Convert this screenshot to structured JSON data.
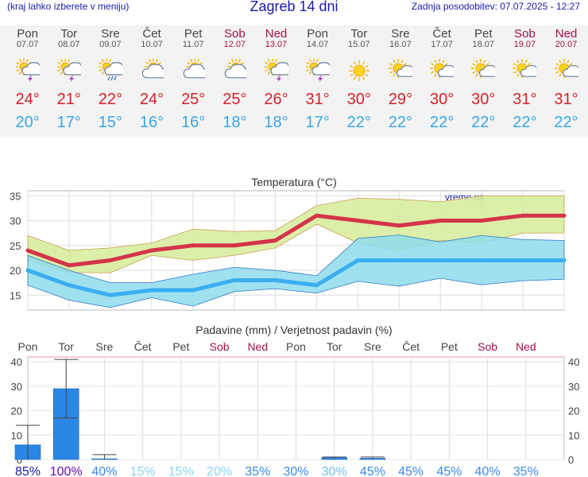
{
  "header": {
    "menu_hint": "(kraj lahko izberete v meniju)",
    "title": "Zagreb 14 dni",
    "updated": "Zadnja posodobitev: 07.07.2025 - 12:27"
  },
  "days": [
    {
      "name": "Pon",
      "date": "07.07",
      "weekend": false,
      "icon": "sun-cloud-thunder-icon",
      "tmax": "24°",
      "tmin": "20°"
    },
    {
      "name": "Tor",
      "date": "08.07",
      "weekend": false,
      "icon": "sun-cloud-thunder-icon",
      "tmax": "21°",
      "tmin": "17°"
    },
    {
      "name": "Sre",
      "date": "09.07",
      "weekend": false,
      "icon": "sun-cloud-rain-icon",
      "tmax": "22°",
      "tmin": "15°"
    },
    {
      "name": "Čet",
      "date": "10.07",
      "weekend": false,
      "icon": "sun-cloud-icon",
      "tmax": "24°",
      "tmin": "16°"
    },
    {
      "name": "Pet",
      "date": "11.07",
      "weekend": false,
      "icon": "sun-cloud-icon",
      "tmax": "25°",
      "tmin": "16°"
    },
    {
      "name": "Sob",
      "date": "12.07",
      "weekend": true,
      "icon": "sun-cloud-icon",
      "tmax": "25°",
      "tmin": "18°"
    },
    {
      "name": "Ned",
      "date": "13.07",
      "weekend": true,
      "icon": "sun-cloud-thunder-icon",
      "tmax": "26°",
      "tmin": "18°"
    },
    {
      "name": "Pon",
      "date": "14.07",
      "weekend": false,
      "icon": "sun-cloud-thunder-icon",
      "tmax": "31°",
      "tmin": "17°"
    },
    {
      "name": "Tor",
      "date": "15.07",
      "weekend": false,
      "icon": "sun-icon",
      "tmax": "30°",
      "tmin": "22°"
    },
    {
      "name": "Sre",
      "date": "16.07",
      "weekend": false,
      "icon": "sun-small-cloud-icon",
      "tmax": "29°",
      "tmin": "22°"
    },
    {
      "name": "Čet",
      "date": "17.07",
      "weekend": false,
      "icon": "sun-small-cloud-icon",
      "tmax": "30°",
      "tmin": "22°"
    },
    {
      "name": "Pet",
      "date": "18.07",
      "weekend": false,
      "icon": "sun-small-cloud-icon",
      "tmax": "30°",
      "tmin": "22°"
    },
    {
      "name": "Sob",
      "date": "19.07",
      "weekend": true,
      "icon": "sun-small-cloud-icon",
      "tmax": "31°",
      "tmin": "22°"
    },
    {
      "name": "Ned",
      "date": "20.07",
      "weekend": true,
      "icon": "sun-small-cloud-icon",
      "tmax": "31°",
      "tmin": "22°"
    }
  ],
  "colors": {
    "max_line": "#d4344a",
    "max_band": "#d6ec9a",
    "min_line": "#3aaef0",
    "min_band": "#8fdcec",
    "precip_bar": "#2c86e6",
    "weekend": "#a0104a",
    "title_blue": "#1a1aa8"
  },
  "chart_data": [
    {
      "type": "line",
      "title": "Temperatura (°C)",
      "watermark": "vreme.us",
      "x": [
        "07.07",
        "08.07",
        "09.07",
        "10.07",
        "11.07",
        "12.07",
        "13.07",
        "14.07",
        "15.07",
        "16.07",
        "17.07",
        "18.07",
        "19.07",
        "20.07"
      ],
      "ylim": [
        12,
        36
      ],
      "yticks": [
        15,
        20,
        25,
        30,
        35
      ],
      "grid": true,
      "series": [
        {
          "role": "max",
          "values": [
            24,
            21,
            22,
            24,
            25,
            25,
            26,
            31,
            30,
            29,
            30,
            30,
            31,
            31
          ],
          "band_low": [
            22,
            19.5,
            19.5,
            23,
            22,
            23,
            24.5,
            29.3,
            25.5,
            24,
            26,
            25.5,
            27.5,
            27.5
          ],
          "band_high": [
            27,
            24,
            24.5,
            25.5,
            28.3,
            27.8,
            28,
            33,
            34.5,
            34.3,
            33.8,
            35,
            35,
            35
          ]
        },
        {
          "role": "min",
          "values": [
            20,
            17,
            15,
            16,
            16,
            18,
            18,
            17,
            22,
            22,
            22,
            22,
            22,
            22
          ],
          "band_low": [
            17,
            14,
            12.5,
            14.5,
            12.8,
            15.7,
            16.3,
            15.4,
            17.8,
            16.8,
            18.4,
            17.1,
            17.9,
            18.2
          ],
          "band_high": [
            23,
            20,
            17.5,
            17.5,
            19.2,
            20.6,
            20,
            18.9,
            26.4,
            27.1,
            25.7,
            27,
            26.2,
            26
          ]
        }
      ]
    },
    {
      "type": "bar",
      "title": "Padavine (mm) / Verjetnost padavin (%)",
      "categories": [
        "Pon",
        "Tor",
        "Sre",
        "Čet",
        "Pet",
        "Sob",
        "Ned",
        "Pon",
        "Tor",
        "Sre",
        "Čet",
        "Pet",
        "Sob",
        "Ned"
      ],
      "weekend": [
        false,
        false,
        false,
        false,
        false,
        true,
        true,
        false,
        false,
        false,
        false,
        false,
        true,
        true
      ],
      "values": [
        6,
        29,
        0.3,
        0,
        0,
        0,
        0,
        0,
        0.8,
        0.5,
        0,
        0,
        0,
        0
      ],
      "err_low": [
        0,
        17,
        0,
        0,
        0,
        0,
        0,
        0,
        0,
        0,
        0,
        0,
        0,
        0
      ],
      "err_high": [
        14,
        41,
        2,
        0,
        0,
        0,
        0,
        0,
        1,
        1,
        0,
        0,
        0,
        0
      ],
      "probability": [
        "85%",
        "100%",
        "40%",
        "15%",
        "15%",
        "20%",
        "35%",
        "30%",
        "30%",
        "45%",
        "45%",
        "45%",
        "40%",
        "35%"
      ],
      "probability_colors": [
        "#1a1aa8",
        "#6a0aa8",
        "#3a8ae8",
        "#8ad4f0",
        "#8ad4f0",
        "#8ad4f0",
        "#3a8ae8",
        "#3a8ae8",
        "#6cc0f0",
        "#3a8ae8",
        "#3a8ae8",
        "#3a8ae8",
        "#3a8ae8",
        "#3a8ae8"
      ],
      "ylim": [
        0,
        42
      ],
      "yticks": [
        0,
        10,
        20,
        30,
        40
      ],
      "grid": true
    }
  ]
}
